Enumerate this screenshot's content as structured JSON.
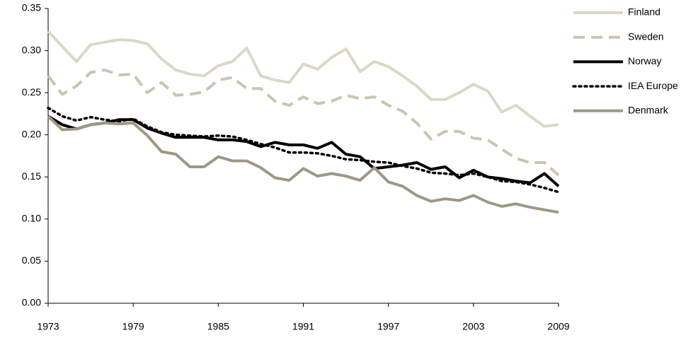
{
  "chart_data": {
    "type": "line",
    "x": [
      1973,
      1974,
      1975,
      1976,
      1977,
      1978,
      1979,
      1980,
      1981,
      1982,
      1983,
      1984,
      1985,
      1986,
      1987,
      1988,
      1989,
      1990,
      1991,
      1992,
      1993,
      1994,
      1995,
      1996,
      1997,
      1998,
      1999,
      2000,
      2001,
      2002,
      2003,
      2004,
      2005,
      2006,
      2007,
      2008,
      2009
    ],
    "xlim": [
      1973,
      2009
    ],
    "xticks": [
      1973,
      1979,
      1985,
      1991,
      1997,
      2003,
      2009
    ],
    "ylim": [
      0,
      0.35
    ],
    "yticks": [
      {
        "value": 0,
        "label": "0.00"
      },
      {
        "value": 0.05,
        "label": "0.05"
      },
      {
        "value": 0.1,
        "label": "0.10"
      },
      {
        "value": 0.15,
        "label": "0.15"
      },
      {
        "value": 0.2,
        "label": "0.20"
      },
      {
        "value": 0.25,
        "label": "0.25"
      },
      {
        "value": 0.3,
        "label": "0.30"
      },
      {
        "value": 0.35,
        "label": "0.35"
      }
    ],
    "legend": "right",
    "series": [
      {
        "name": "Finland",
        "color": "#dad8c6",
        "style": "solid",
        "values": [
          0.323,
          0.305,
          0.287,
          0.307,
          0.31,
          0.313,
          0.312,
          0.308,
          0.29,
          0.277,
          0.272,
          0.27,
          0.282,
          0.287,
          0.303,
          0.27,
          0.265,
          0.262,
          0.284,
          0.278,
          0.292,
          0.302,
          0.275,
          0.287,
          0.281,
          0.27,
          0.258,
          0.242,
          0.242,
          0.25,
          0.26,
          0.252,
          0.227,
          0.235,
          0.222,
          0.21,
          0.212
        ]
      },
      {
        "name": "Sweden",
        "color": "#c9c5b2",
        "style": "dashed",
        "values": [
          0.27,
          0.248,
          0.258,
          0.274,
          0.277,
          0.271,
          0.272,
          0.25,
          0.262,
          0.247,
          0.248,
          0.251,
          0.265,
          0.268,
          0.255,
          0.255,
          0.24,
          0.235,
          0.245,
          0.237,
          0.24,
          0.247,
          0.243,
          0.245,
          0.235,
          0.228,
          0.214,
          0.195,
          0.204,
          0.204,
          0.196,
          0.194,
          0.183,
          0.172,
          0.167,
          0.167,
          0.152
        ]
      },
      {
        "name": "Norway",
        "color": "#000000",
        "style": "solid",
        "values": [
          0.222,
          0.212,
          0.207,
          0.212,
          0.214,
          0.218,
          0.218,
          0.208,
          0.202,
          0.197,
          0.197,
          0.197,
          0.194,
          0.194,
          0.192,
          0.186,
          0.191,
          0.188,
          0.188,
          0.184,
          0.191,
          0.177,
          0.174,
          0.16,
          0.162,
          0.164,
          0.167,
          0.159,
          0.162,
          0.149,
          0.158,
          0.15,
          0.148,
          0.145,
          0.143,
          0.154,
          0.139
        ]
      },
      {
        "name": "IEA Europe",
        "color": "#000000",
        "style": "dotted",
        "values": [
          0.232,
          0.222,
          0.217,
          0.221,
          0.218,
          0.216,
          0.219,
          0.21,
          0.203,
          0.2,
          0.199,
          0.198,
          0.199,
          0.198,
          0.194,
          0.189,
          0.185,
          0.179,
          0.179,
          0.178,
          0.175,
          0.171,
          0.17,
          0.168,
          0.167,
          0.163,
          0.16,
          0.155,
          0.154,
          0.152,
          0.154,
          0.15,
          0.145,
          0.144,
          0.141,
          0.137,
          0.132
        ]
      },
      {
        "name": "Denmark",
        "color": "#9d9885",
        "style": "solid",
        "values": [
          0.222,
          0.206,
          0.207,
          0.212,
          0.214,
          0.213,
          0.214,
          0.199,
          0.18,
          0.177,
          0.162,
          0.162,
          0.174,
          0.169,
          0.169,
          0.161,
          0.149,
          0.146,
          0.16,
          0.151,
          0.154,
          0.151,
          0.146,
          0.161,
          0.144,
          0.139,
          0.128,
          0.121,
          0.124,
          0.122,
          0.128,
          0.12,
          0.115,
          0.118,
          0.114,
          0.111,
          0.108
        ]
      }
    ]
  }
}
